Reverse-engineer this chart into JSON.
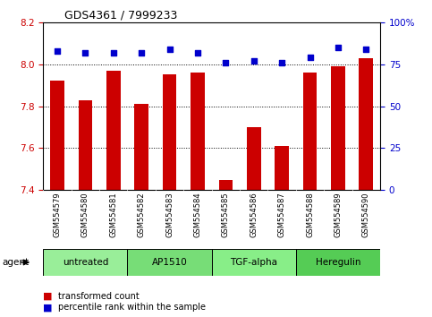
{
  "title": "GDS4361 / 7999233",
  "samples": [
    "GSM554579",
    "GSM554580",
    "GSM554581",
    "GSM554582",
    "GSM554583",
    "GSM554584",
    "GSM554585",
    "GSM554586",
    "GSM554587",
    "GSM554588",
    "GSM554589",
    "GSM554590"
  ],
  "bar_values": [
    7.92,
    7.83,
    7.97,
    7.81,
    7.95,
    7.96,
    7.45,
    7.7,
    7.61,
    7.96,
    7.99,
    8.03
  ],
  "dot_values": [
    83,
    82,
    82,
    82,
    84,
    82,
    76,
    77,
    76,
    79,
    85,
    84
  ],
  "bar_color": "#cc0000",
  "dot_color": "#0000cc",
  "ylim_left": [
    7.4,
    8.2
  ],
  "ylim_right": [
    0,
    100
  ],
  "yticks_left": [
    7.4,
    7.6,
    7.8,
    8.0,
    8.2
  ],
  "yticks_right": [
    0,
    25,
    50,
    75,
    100
  ],
  "ytick_labels_right": [
    "0",
    "25",
    "50",
    "75",
    "100%"
  ],
  "grid_values": [
    7.6,
    7.8,
    8.0
  ],
  "agent_groups": [
    {
      "label": "untreated",
      "start": 0,
      "end": 3,
      "color": "#99ee99"
    },
    {
      "label": "AP1510",
      "start": 3,
      "end": 6,
      "color": "#77dd77"
    },
    {
      "label": "TGF-alpha",
      "start": 6,
      "end": 9,
      "color": "#88ee88"
    },
    {
      "label": "Heregulin",
      "start": 9,
      "end": 12,
      "color": "#55cc55"
    }
  ],
  "legend_bar_label": "transformed count",
  "legend_dot_label": "percentile rank within the sample",
  "agent_label": "agent",
  "background_color": "#ffffff",
  "tick_area_color": "#c8c8c8",
  "bar_width": 0.5,
  "figw": 4.83,
  "figh": 3.54,
  "dpi": 100
}
